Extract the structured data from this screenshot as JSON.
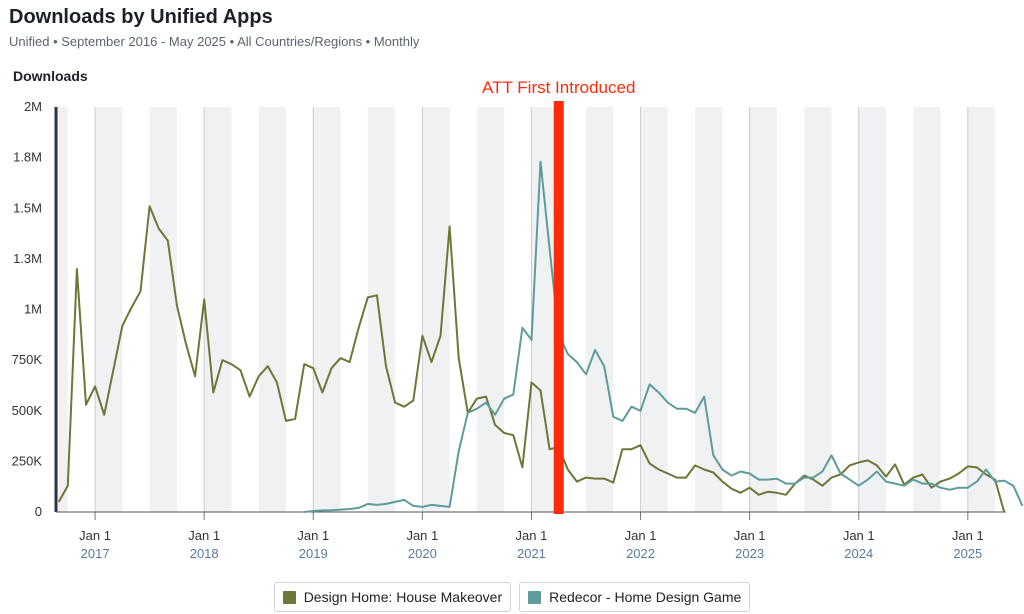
{
  "header": {
    "title": "Downloads by Unified Apps",
    "subtitle": "Unified • September 2016 - May 2025 • All Countries/Regions • Monthly"
  },
  "chart_data": {
    "type": "line",
    "ylabel": "Downloads",
    "ylim": [
      0,
      2000000
    ],
    "yticks": [
      {
        "value": 0,
        "label": "0"
      },
      {
        "value": 250000,
        "label": "250K"
      },
      {
        "value": 500000,
        "label": "500K"
      },
      {
        "value": 750000,
        "label": "750K"
      },
      {
        "value": 1000000,
        "label": "1M"
      },
      {
        "value": 1250000,
        "label": "1.3M"
      },
      {
        "value": 1500000,
        "label": "1.5M"
      },
      {
        "value": 1750000,
        "label": "1.8M"
      },
      {
        "value": 2000000,
        "label": "2M"
      }
    ],
    "xrange": [
      "2016-09",
      "2025-05"
    ],
    "xticks": [
      {
        "date": "2017-01",
        "label": "Jan 1",
        "year": "2017"
      },
      {
        "date": "2018-01",
        "label": "Jan 1",
        "year": "2018"
      },
      {
        "date": "2019-01",
        "label": "Jan 1",
        "year": "2019"
      },
      {
        "date": "2020-01",
        "label": "Jan 1",
        "year": "2020"
      },
      {
        "date": "2021-01",
        "label": "Jan 1",
        "year": "2021"
      },
      {
        "date": "2022-01",
        "label": "Jan 1",
        "year": "2022"
      },
      {
        "date": "2023-01",
        "label": "Jan 1",
        "year": "2023"
      },
      {
        "date": "2024-01",
        "label": "Jan 1",
        "year": "2024"
      },
      {
        "date": "2025-01",
        "label": "Jan 1",
        "year": "2025"
      }
    ],
    "grid": "vertical gridlines with alternating quarter shading",
    "legend_position": "bottom-center",
    "annotation": {
      "label": "ATT First Introduced",
      "date": "2021-04",
      "color": "#ff2a0a"
    },
    "series": [
      {
        "name": "Design Home: House Makeover",
        "color": "#6e7638",
        "start": "2016-09",
        "values": [
          50000,
          130000,
          1200000,
          530000,
          620000,
          480000,
          700000,
          920000,
          1010000,
          1090000,
          1510000,
          1400000,
          1340000,
          1020000,
          830000,
          670000,
          1050000,
          590000,
          750000,
          730000,
          700000,
          570000,
          670000,
          720000,
          640000,
          450000,
          460000,
          730000,
          710000,
          590000,
          710000,
          760000,
          740000,
          910000,
          1060000,
          1070000,
          720000,
          540000,
          520000,
          550000,
          870000,
          740000,
          870000,
          1410000,
          760000,
          490000,
          560000,
          570000,
          430000,
          390000,
          380000,
          220000,
          640000,
          600000,
          310000,
          320000,
          210000,
          150000,
          170000,
          165000,
          165000,
          145000,
          310000,
          310000,
          330000,
          240000,
          210000,
          190000,
          170000,
          170000,
          230000,
          210000,
          195000,
          150000,
          115000,
          95000,
          120000,
          85000,
          100000,
          95000,
          85000,
          140000,
          180000,
          160000,
          130000,
          170000,
          185000,
          230000,
          245000,
          255000,
          230000,
          175000,
          235000,
          135000,
          170000,
          185000,
          120000,
          150000,
          165000,
          190000,
          225000,
          220000,
          185000,
          160000,
          0
        ]
      },
      {
        "name": "Redecor - Home Design Game",
        "color": "#5e9c9c",
        "start": "2018-12",
        "values": [
          0,
          5000,
          8000,
          9000,
          12000,
          15000,
          20000,
          40000,
          35000,
          40000,
          50000,
          60000,
          30000,
          25000,
          35000,
          30000,
          25000,
          300000,
          490000,
          510000,
          540000,
          480000,
          560000,
          580000,
          910000,
          850000,
          1730000,
          1300000,
          880000,
          780000,
          740000,
          680000,
          800000,
          720000,
          470000,
          450000,
          520000,
          500000,
          630000,
          590000,
          540000,
          510000,
          510000,
          490000,
          570000,
          280000,
          210000,
          180000,
          200000,
          190000,
          160000,
          160000,
          165000,
          140000,
          140000,
          170000,
          170000,
          200000,
          280000,
          190000,
          160000,
          130000,
          160000,
          200000,
          150000,
          140000,
          130000,
          160000,
          140000,
          140000,
          120000,
          110000,
          120000,
          120000,
          150000,
          210000,
          150000,
          155000,
          130000,
          30000
        ]
      }
    ]
  }
}
